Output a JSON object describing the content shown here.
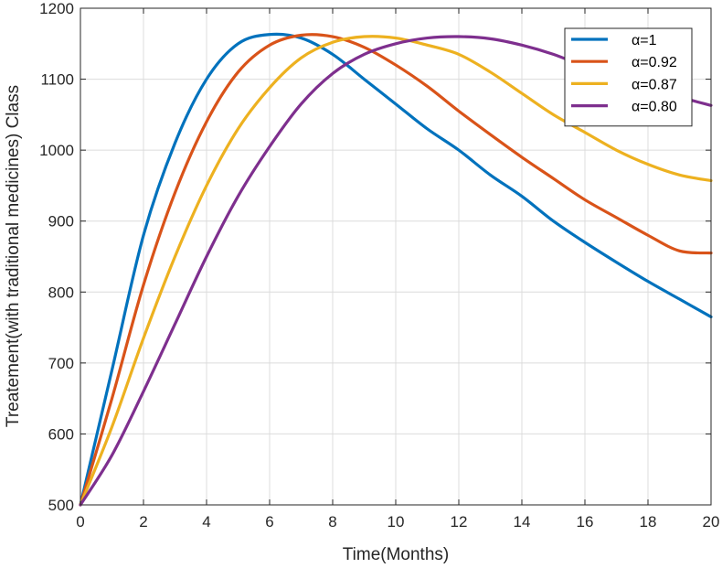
{
  "chart_data": {
    "type": "line",
    "title": "",
    "xlabel": "Time(Months)",
    "ylabel": "Treatement(with traditional medicines) Class",
    "xlim": [
      0,
      20
    ],
    "ylim": [
      500,
      1200
    ],
    "xticks": [
      0,
      2,
      4,
      6,
      8,
      10,
      12,
      14,
      16,
      18,
      20
    ],
    "yticks": [
      500,
      600,
      700,
      800,
      900,
      1000,
      1100,
      1200
    ],
    "grid": true,
    "legend_position": "top-right",
    "x": [
      0,
      1,
      2,
      3,
      4,
      5,
      6,
      7,
      8,
      9,
      10,
      11,
      12,
      13,
      14,
      15,
      16,
      17,
      18,
      19,
      20
    ],
    "series": [
      {
        "name": "α=1",
        "color": "#0072BD",
        "values": [
          500,
          690,
          880,
          1010,
          1100,
          1150,
          1163,
          1158,
          1135,
          1100,
          1065,
          1030,
          1000,
          965,
          935,
          900,
          870,
          842,
          815,
          790,
          765
        ]
      },
      {
        "name": "α=0.92",
        "color": "#D95319",
        "values": [
          500,
          650,
          810,
          940,
          1040,
          1110,
          1148,
          1162,
          1160,
          1145,
          1120,
          1090,
          1055,
          1022,
          990,
          960,
          930,
          905,
          880,
          858,
          855
        ]
      },
      {
        "name": "α=0.87",
        "color": "#EDB120",
        "values": [
          500,
          610,
          735,
          850,
          950,
          1030,
          1088,
          1130,
          1152,
          1160,
          1158,
          1148,
          1135,
          1110,
          1080,
          1050,
          1025,
          1000,
          980,
          965,
          957
        ]
      },
      {
        "name": "α=0.80",
        "color": "#7E2F8E",
        "values": [
          500,
          570,
          660,
          755,
          850,
          935,
          1005,
          1065,
          1108,
          1135,
          1150,
          1158,
          1160,
          1157,
          1148,
          1135,
          1118,
          1105,
          1090,
          1075,
          1063
        ]
      }
    ]
  }
}
